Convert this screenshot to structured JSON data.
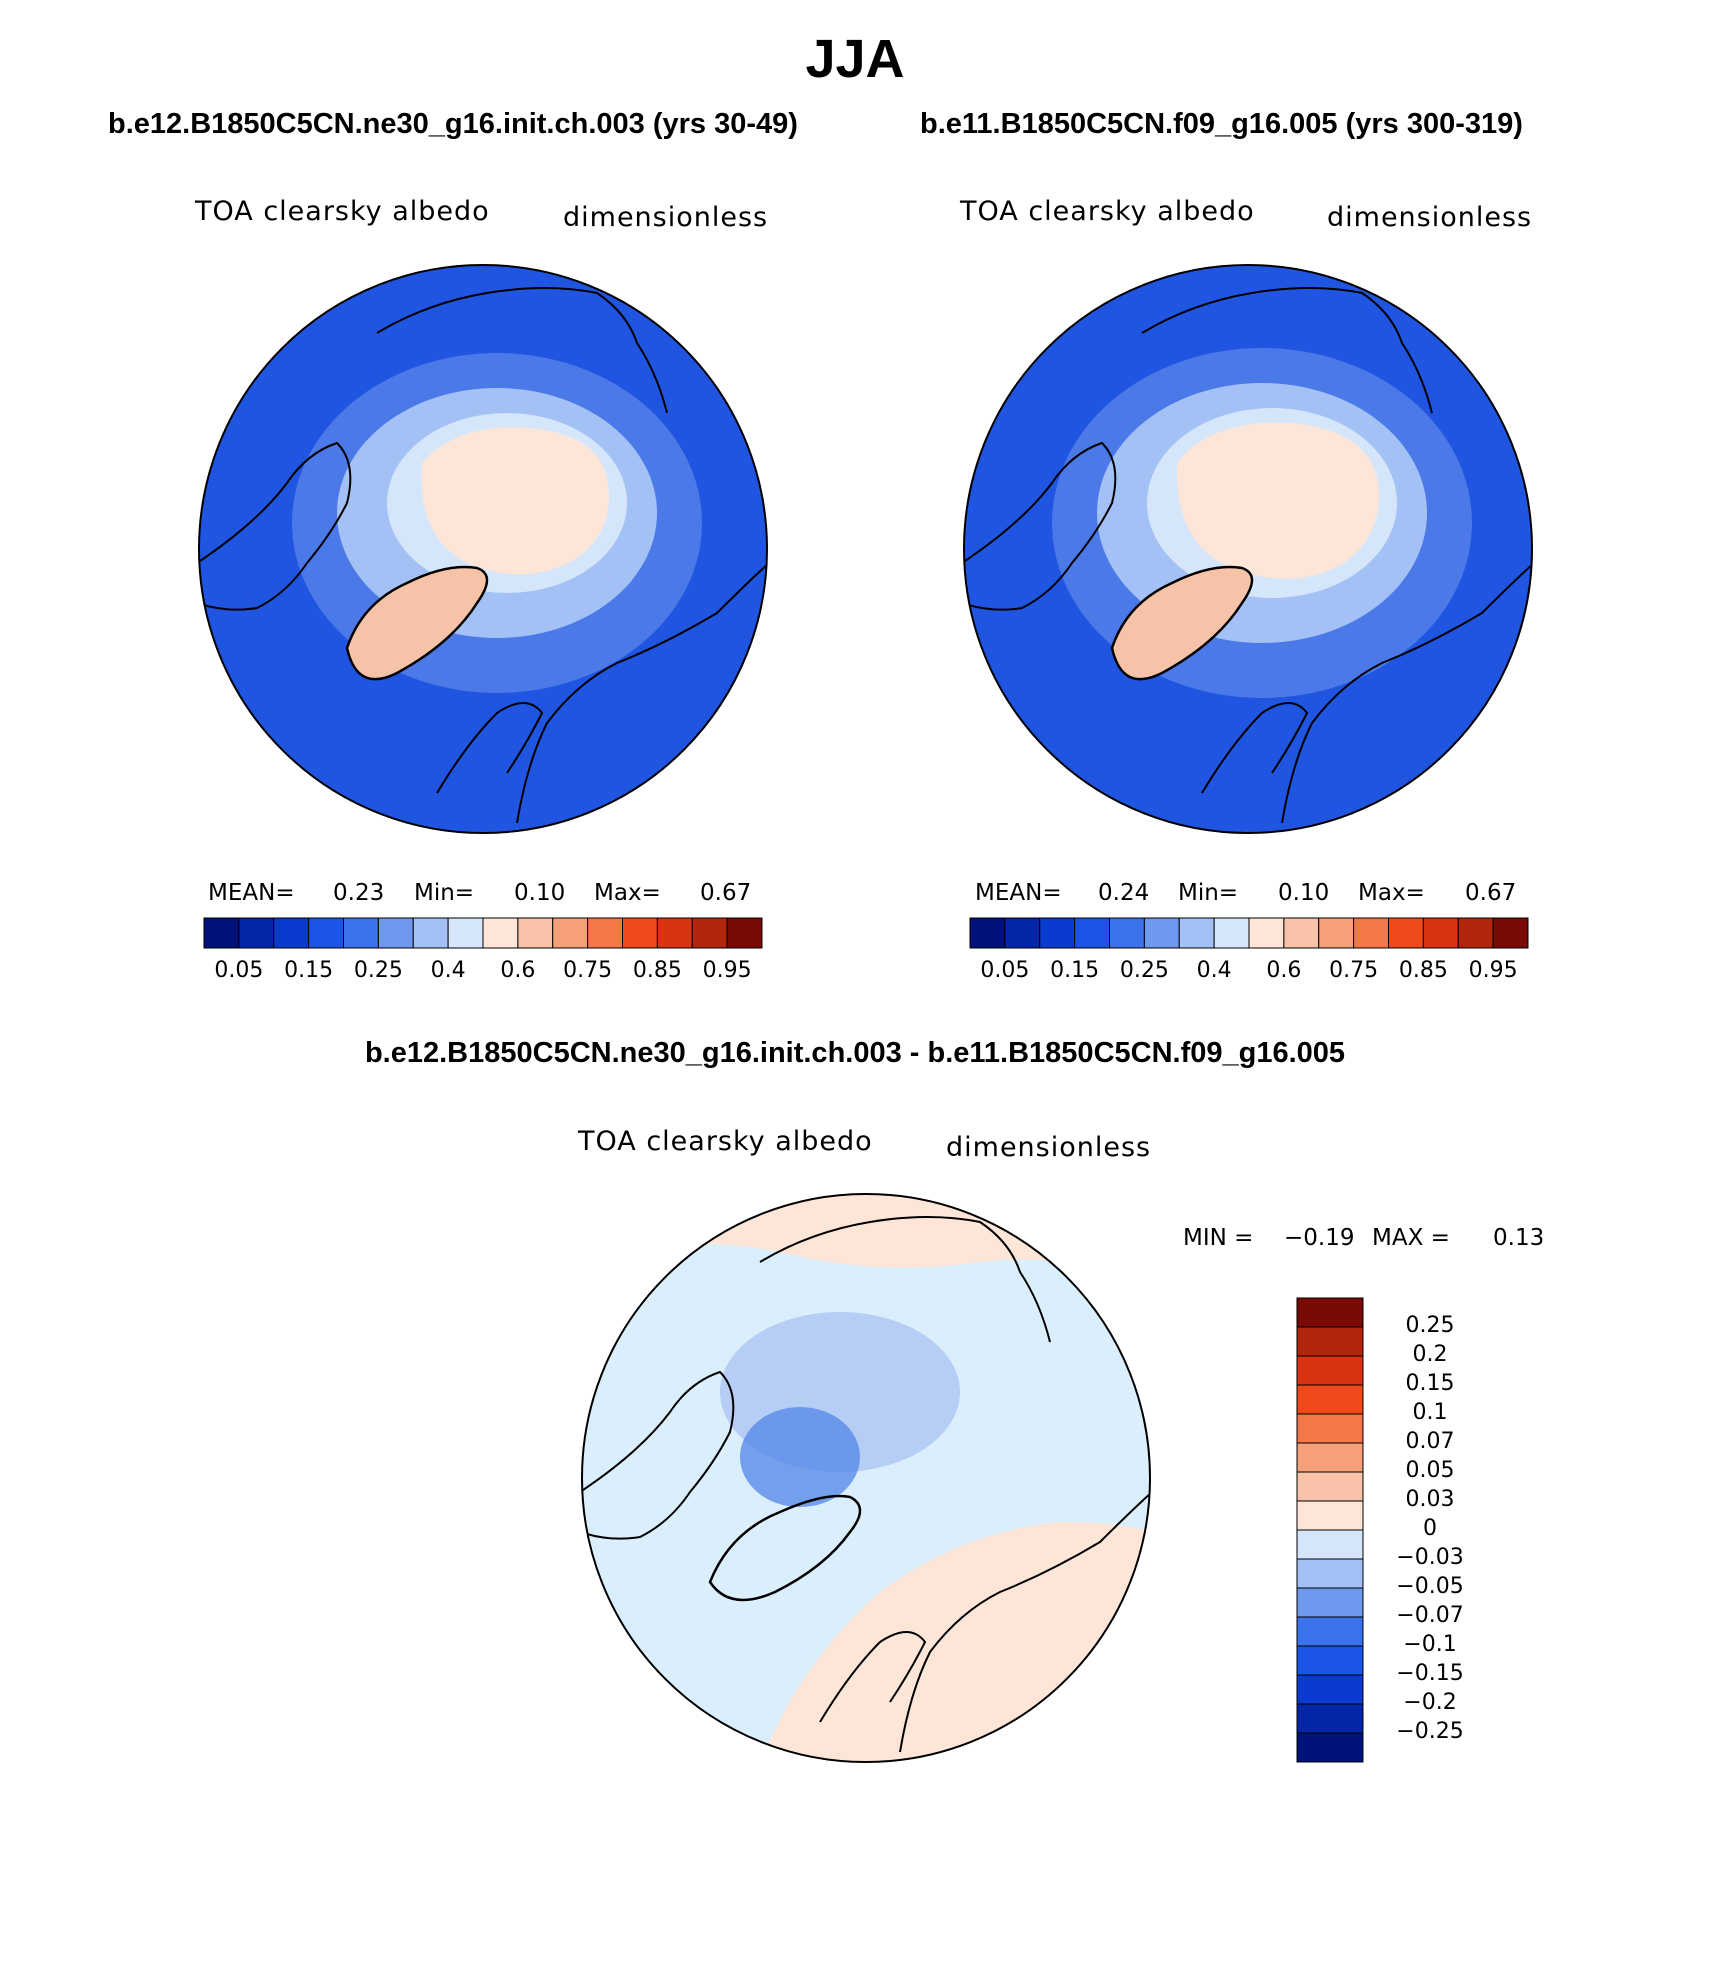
{
  "season": "JJA",
  "colors": {
    "ocean": "#1f55e0",
    "ice_cap": "#fde6d8",
    "greenland": "#f7c3a8",
    "coast": "#000000",
    "diff_ocean": "#dbeefc",
    "diff_pos": "#fde6d8",
    "diff_neg": "#b6cef6",
    "diff_neg_strong": "#5a8be8"
  },
  "panels": [
    {
      "case": "b.e12.B1850C5CN.ne30_g16.init.ch.003 (yrs 30-49)",
      "variable": "TOA clearsky albedo",
      "units": "dimensionless",
      "mean_label": "MEAN=",
      "mean": "0.23",
      "min_label": "Min=",
      "min": "0.10",
      "max_label": "Max=",
      "max": "0.67"
    },
    {
      "case": "b.e11.B1850C5CN.f09_g16.005 (yrs 300-319)",
      "variable": "TOA clearsky albedo",
      "units": "dimensionless",
      "mean_label": "MEAN=",
      "mean": "0.24",
      "min_label": "Min=",
      "min": "0.10",
      "max_label": "Max=",
      "max": "0.67"
    }
  ],
  "abs_colorbar": {
    "colors": [
      "#00127a",
      "#0525a8",
      "#0a3bd1",
      "#1a55e8",
      "#3a73ec",
      "#6f98ef",
      "#a4c1f6",
      "#d5e6fb",
      "#fde6d8",
      "#f8c3a8",
      "#f6a07a",
      "#f4774a",
      "#f04a1a",
      "#d93312",
      "#b3260c",
      "#7a0a05"
    ],
    "labels": [
      "0.05",
      "0.15",
      "0.25",
      "0.4",
      "0.6",
      "0.75",
      "0.85",
      "0.95"
    ]
  },
  "diff": {
    "title": "b.e12.B1850C5CN.ne30_g16.init.ch.003 - b.e11.B1850C5CN.f09_g16.005",
    "variable": "TOA clearsky albedo",
    "units": "dimensionless",
    "min_label": "MIN =",
    "min": "−0.19",
    "max_label": "MAX =",
    "max": "0.13",
    "colorbar": {
      "colors": [
        "#7a0a05",
        "#b3260c",
        "#d93312",
        "#f04a1a",
        "#f4774a",
        "#f6a07a",
        "#f8c3a8",
        "#fde6d8",
        "#d5e6fb",
        "#a4c1f6",
        "#6f98ef",
        "#3a73ec",
        "#1a55e8",
        "#0a3bd1",
        "#0525a8",
        "#00127a"
      ],
      "labels": [
        "0.25",
        "0.2",
        "0.15",
        "0.1",
        "0.07",
        "0.05",
        "0.03",
        "0",
        "−0.03",
        "−0.05",
        "−0.07",
        "−0.1",
        "−0.15",
        "−0.2",
        "−0.25"
      ]
    }
  }
}
